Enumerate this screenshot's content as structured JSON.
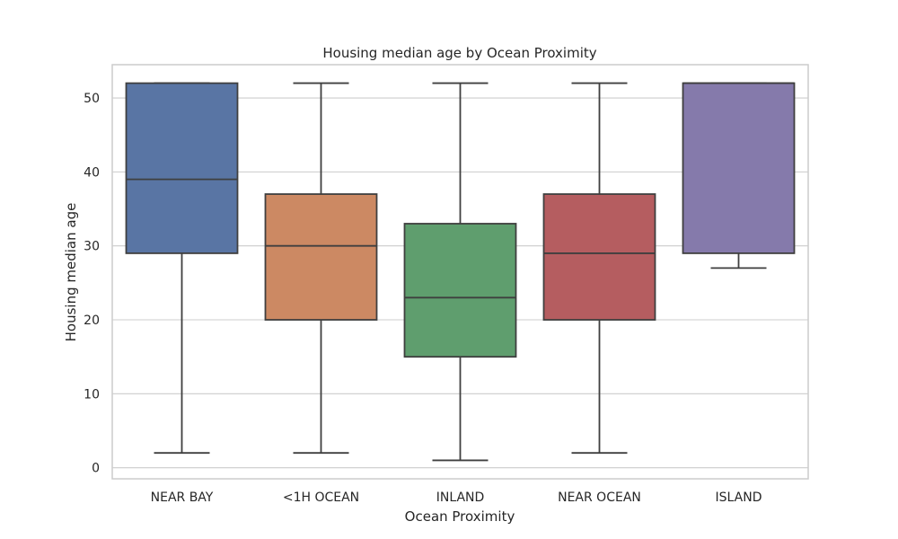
{
  "chart_data": {
    "type": "box",
    "title": "Housing median age by Ocean Proximity",
    "xlabel": "Ocean Proximity",
    "ylabel": "Housing median age",
    "ylim": [
      -1.5,
      54.5
    ],
    "yticks": [
      0,
      10,
      20,
      30,
      40,
      50
    ],
    "grid": true,
    "categories": [
      "NEAR BAY",
      "<1H OCEAN",
      "INLAND",
      "NEAR OCEAN",
      "ISLAND"
    ],
    "boxes": [
      {
        "category": "NEAR BAY",
        "whisker_low": 2,
        "q1": 29,
        "median": 39,
        "q3": 52,
        "whisker_high": 52,
        "color": "#5975a4"
      },
      {
        "category": "<1H OCEAN",
        "whisker_low": 2,
        "q1": 20,
        "median": 30,
        "q3": 37,
        "whisker_high": 52,
        "color": "#cc8963"
      },
      {
        "category": "INLAND",
        "whisker_low": 1,
        "q1": 15,
        "median": 23,
        "q3": 33,
        "whisker_high": 52,
        "color": "#5f9e6e"
      },
      {
        "category": "NEAR OCEAN",
        "whisker_low": 2,
        "q1": 20,
        "median": 29,
        "q3": 37,
        "whisker_high": 52,
        "color": "#b55d60"
      },
      {
        "category": "ISLAND",
        "whisker_low": 27,
        "q1": 29,
        "median": 52,
        "q3": 52,
        "whisker_high": 52,
        "color": "#857aab"
      }
    ],
    "line_color": "#3f3f3f",
    "grid_color": "#cccccc",
    "frame_color": "#cccccc"
  }
}
